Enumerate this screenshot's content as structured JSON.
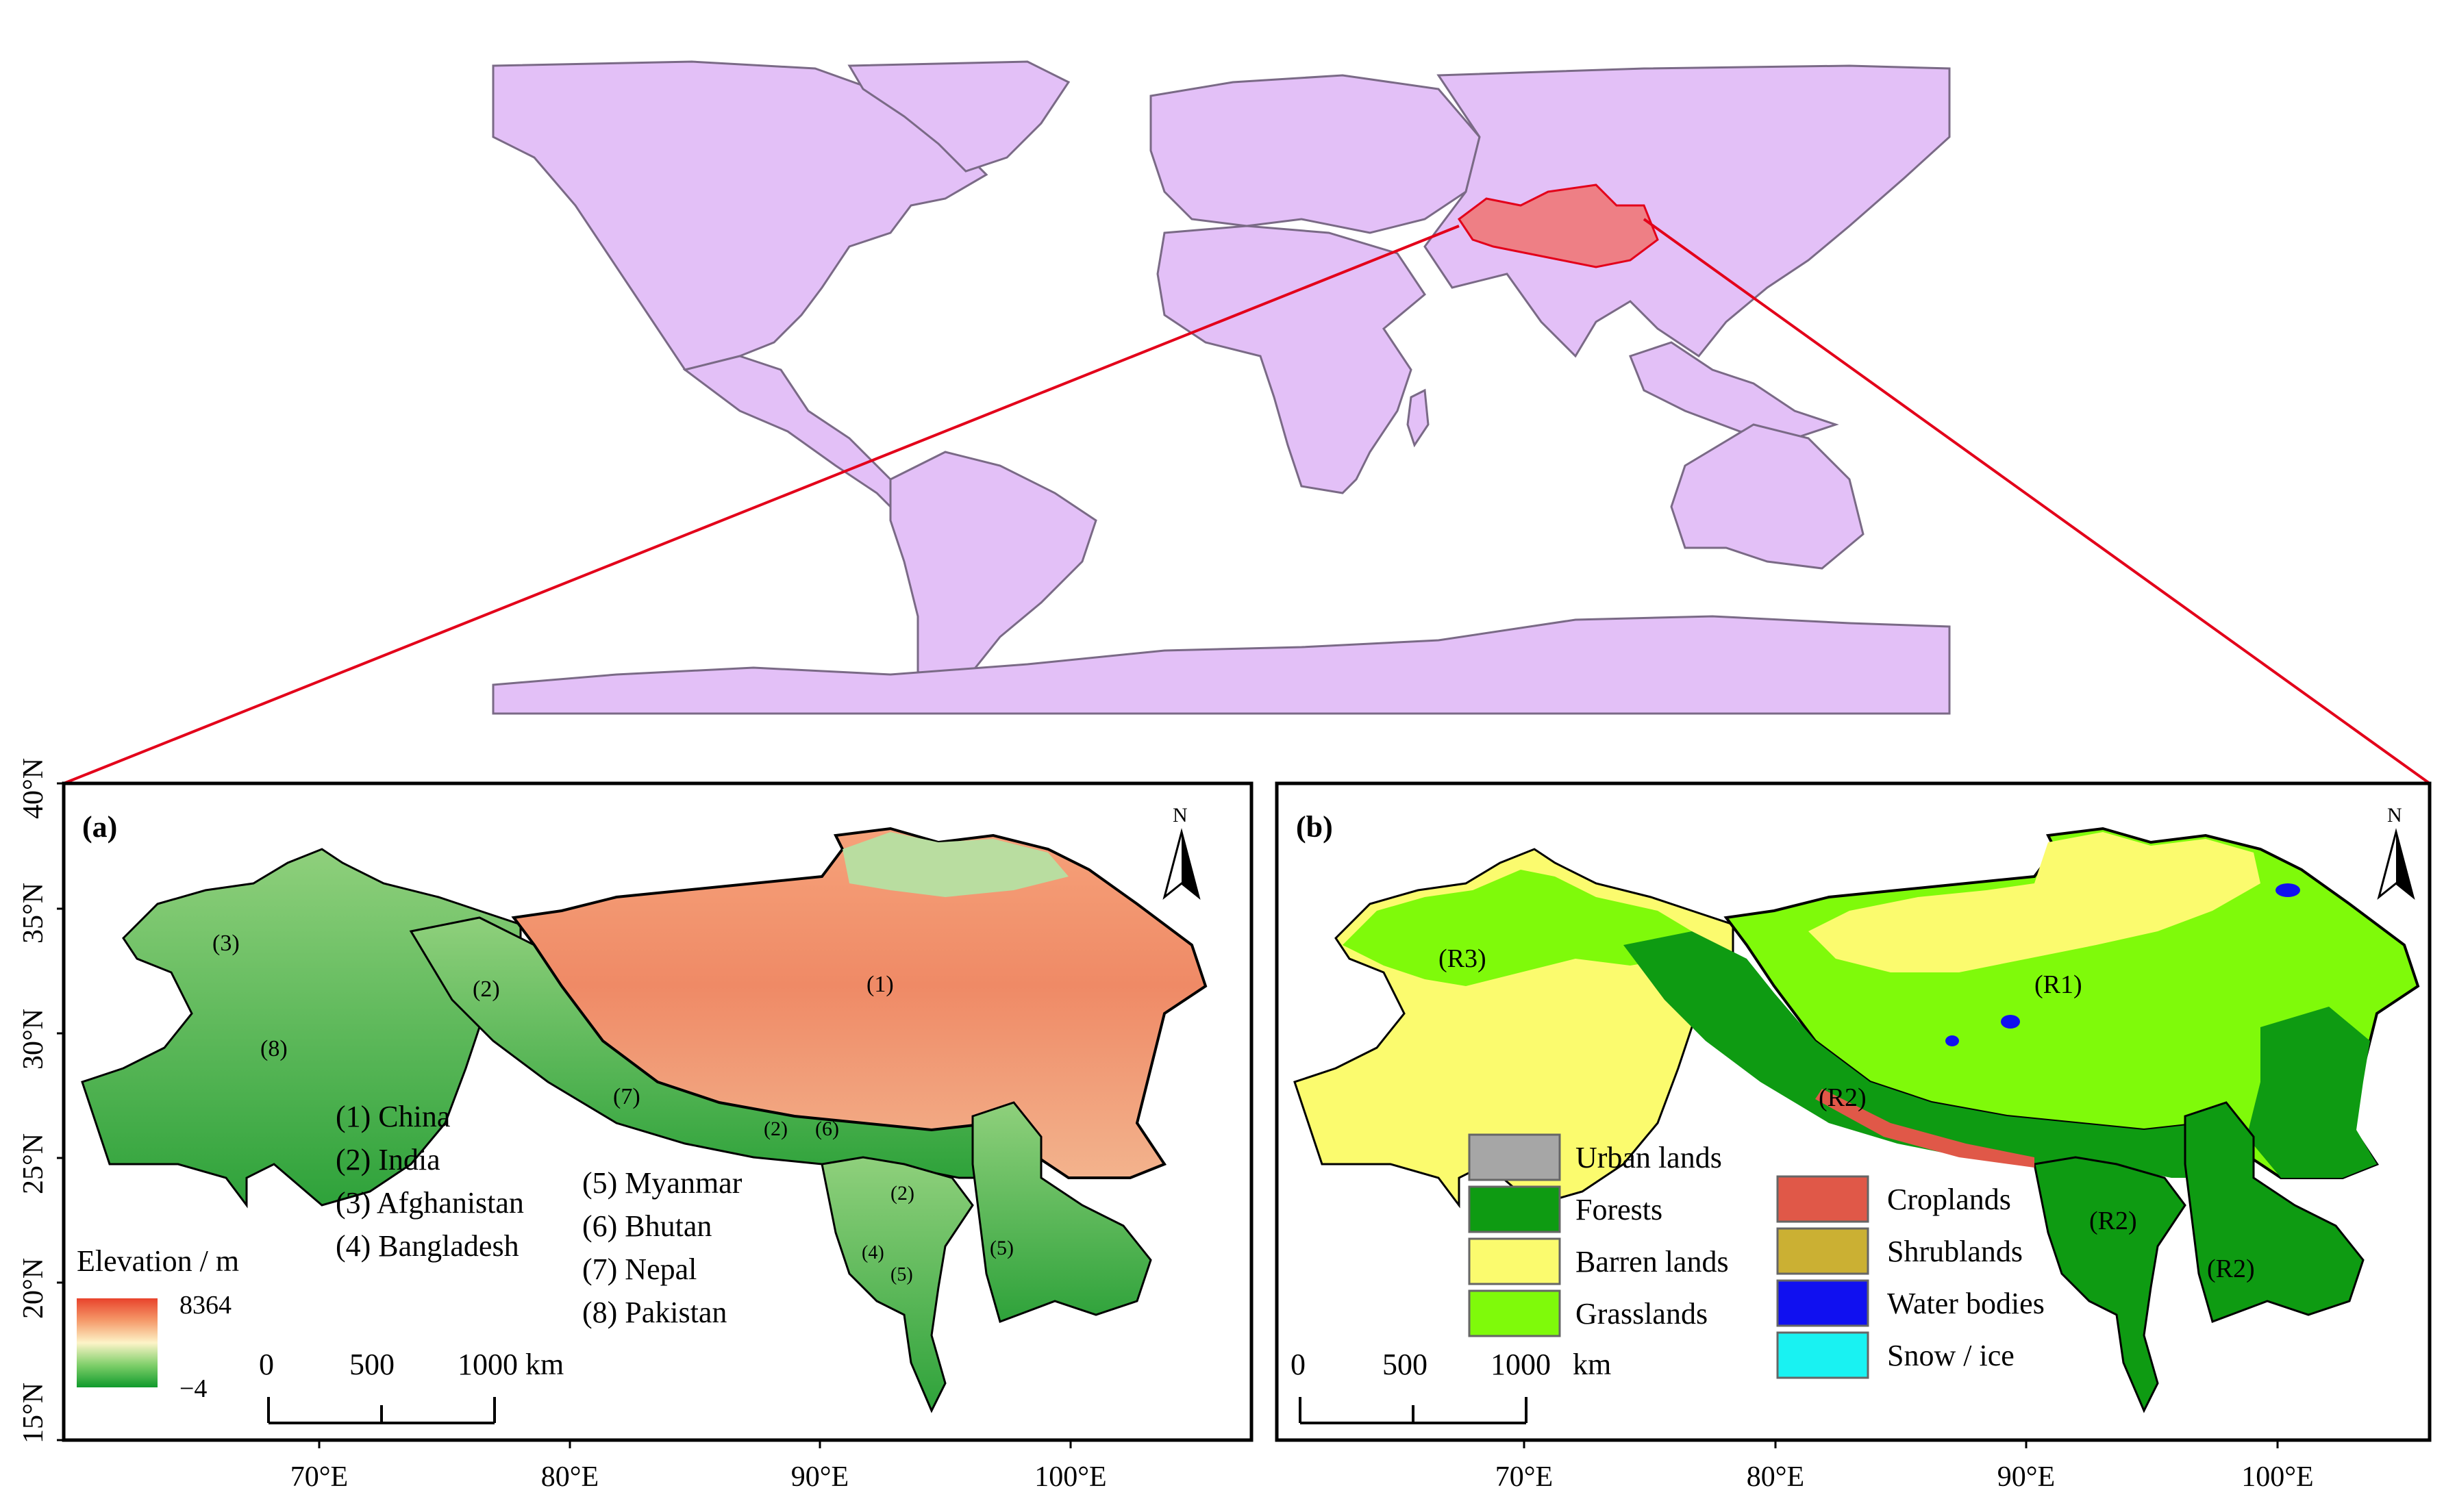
{
  "panel_a": {
    "label": "(a)",
    "north": "N",
    "countries": [
      {
        "num": "(1)",
        "name": "China"
      },
      {
        "num": "(2)",
        "name": "India"
      },
      {
        "num": "(3)",
        "name": "Afghanistan"
      },
      {
        "num": "(4)",
        "name": "Bangladesh"
      },
      {
        "num": "(5)",
        "name": "Myanmar"
      },
      {
        "num": "(6)",
        "name": "Bhutan"
      },
      {
        "num": "(7)",
        "name": "Nepal"
      },
      {
        "num": "(8)",
        "name": "Pakistan"
      }
    ],
    "legend_list_left": [
      "(1) China",
      "(2) India",
      "(3) Afghanistan",
      "(4) Bangladesh"
    ],
    "legend_list_right": [
      "(5) Myanmar",
      "(6) Bhutan",
      "(7) Nepal",
      "(8) Pakistan"
    ],
    "map_labels": [
      "(1)",
      "(2)",
      "(3)",
      "(8)",
      "(7)",
      "(2)",
      "(6)",
      "(2)",
      "(4)",
      "(5)",
      "(5)"
    ],
    "elevation_title": "Elevation / m",
    "elevation_max": "8364",
    "elevation_min": "−4",
    "scale": [
      "0",
      "500",
      "1000 km"
    ]
  },
  "panel_b": {
    "label": "(b)",
    "north": "N",
    "region_labels": [
      "(R3)",
      "(R1)",
      "(R2)",
      "(R2)",
      "(R2)"
    ],
    "legend_left": [
      {
        "name": "Urban lands",
        "color": "#a6a6a6"
      },
      {
        "name": "Forests",
        "color": "#0e9b12"
      },
      {
        "name": "Barren lands",
        "color": "#fbfb6e"
      },
      {
        "name": "Grasslands",
        "color": "#7ffa0a"
      }
    ],
    "legend_right": [
      {
        "name": "Croplands",
        "color": "#e05848"
      },
      {
        "name": "Shrublands",
        "color": "#cbb033"
      },
      {
        "name": "Water bodies",
        "color": "#1010f0"
      },
      {
        "name": "Snow / ice",
        "color": "#19f2f2"
      }
    ],
    "scale": [
      "0",
      "500",
      "1000",
      "km"
    ]
  },
  "axes": {
    "lat_ticks": [
      "40°N",
      "35°N",
      "30°N",
      "25°N",
      "20°N",
      "15°N"
    ],
    "lon_ticks_a": [
      "70°E",
      "80°E",
      "90°E",
      "100°E"
    ],
    "lon_ticks_b": [
      "70°E",
      "80°E",
      "90°E",
      "100°E"
    ]
  },
  "colors": {
    "world_land": "#e3c0f7",
    "world_outline": "#7a6a86",
    "study_area": "#ee7f85",
    "connector": "#e3001a"
  }
}
